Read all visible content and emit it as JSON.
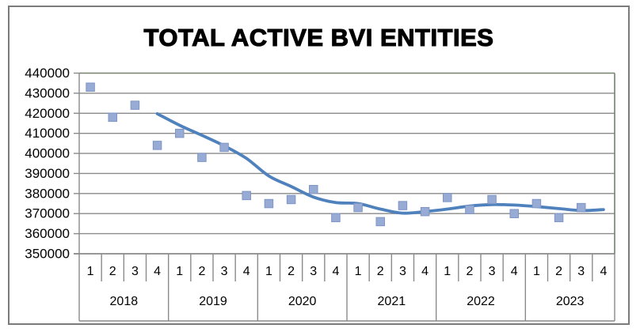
{
  "chart_data": {
    "type": "scatter",
    "title": "TOTAL ACTIVE BVI ENTITIES",
    "x_multilevel": {
      "quarters": [
        "1",
        "2",
        "3",
        "4"
      ],
      "years": [
        "2018",
        "2019",
        "2020",
        "2021",
        "2022",
        "2023"
      ]
    },
    "series": [
      {
        "name": "Total active BVI entities",
        "marker": "square",
        "values": [
          433000,
          418000,
          424000,
          404000,
          410000,
          398000,
          403000,
          379000,
          375000,
          377000,
          382000,
          368000,
          373000,
          366000,
          374000,
          371000,
          378000,
          372000,
          377000,
          370000,
          375000,
          368000,
          373000,
          null
        ]
      }
    ],
    "trendline": {
      "name": "4-period moving average",
      "start_index": 3,
      "values": [
        419750,
        414000,
        409000,
        403750,
        397500,
        388750,
        383500,
        378250,
        375500,
        375000,
        372250,
        370250,
        371000,
        372250,
        373750,
        374500,
        374250,
        373500,
        372500,
        371500,
        372000
      ]
    },
    "ylim": [
      350000,
      440000
    ],
    "ytick_step": 10000,
    "yticks": [
      "440000",
      "430000",
      "420000",
      "410000",
      "400000",
      "390000",
      "380000",
      "370000",
      "360000",
      "350000"
    ],
    "grid": true,
    "legend_position": "none"
  },
  "colors": {
    "marker_fill": "#98abd5",
    "marker_border": "#7e95c5",
    "trendline": "#4f81bd",
    "gridline": "#8a8a8a",
    "plot_border": "#75826e",
    "frame_border": "#7b7b7b",
    "text": "#000000",
    "background": "#ffffff"
  }
}
